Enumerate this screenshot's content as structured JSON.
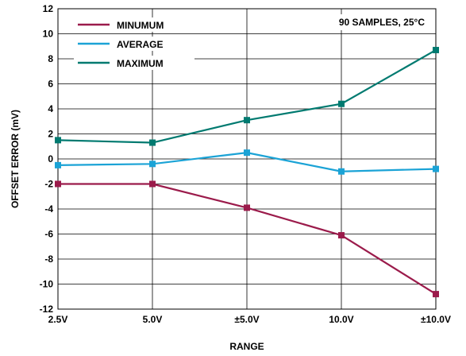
{
  "chart_data": {
    "type": "line",
    "title": "",
    "annotation": "90 SAMPLES, 25°C",
    "xlabel": "RANGE",
    "ylabel": "OFFSET ERROR (mV)",
    "categories": [
      "2.5V",
      "5.0V",
      "±5.0V",
      "10.0V",
      "±10.0V"
    ],
    "ylim": [
      -12,
      12
    ],
    "yticks": [
      12,
      10,
      8,
      6,
      4,
      2,
      0,
      -2,
      -4,
      -6,
      -8,
      -10,
      -12
    ],
    "grid": true,
    "legend_position": "top-left",
    "series": [
      {
        "name": "MINUMUM",
        "color": "#9b1b4b",
        "values": [
          -2.0,
          -2.0,
          -3.9,
          -6.1,
          -10.8
        ]
      },
      {
        "name": "AVERAGE",
        "color": "#1ba3d6",
        "values": [
          -0.5,
          -0.4,
          0.5,
          -1.0,
          -0.8
        ]
      },
      {
        "name": "MAXIMUM",
        "color": "#007a70",
        "values": [
          1.5,
          1.3,
          3.1,
          4.4,
          8.7
        ]
      }
    ]
  }
}
